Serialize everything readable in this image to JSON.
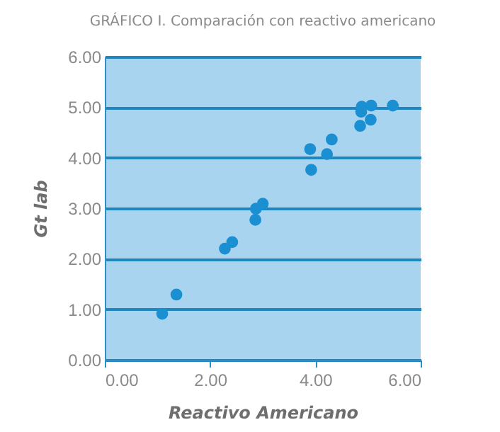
{
  "chart_data": {
    "type": "scatter",
    "title": "GRÁFICO I. Comparación con reactivo americano",
    "xlabel": "Reactivo Americano",
    "ylabel": "Gt lab",
    "series": [
      {
        "color": "#1a8fd1",
        "x": [
          1.09,
          1.36,
          2.28,
          2.42,
          2.86,
          2.87,
          3.0,
          3.9,
          3.92,
          4.22,
          4.31,
          4.85,
          4.87,
          4.88,
          5.06,
          5.05,
          5.47
        ],
        "values": [
          0.91,
          1.29,
          2.2,
          2.33,
          2.77,
          2.99,
          3.09,
          4.17,
          3.76,
          4.07,
          4.36,
          4.63,
          4.91,
          5.01,
          5.03,
          4.75,
          5.03
        ]
      }
    ],
    "xlim": [
      0,
      6
    ],
    "ylim": [
      0,
      6
    ],
    "xticks": [
      {
        "value": 0,
        "label": "0.00"
      },
      {
        "value": 2,
        "label": "2.00"
      },
      {
        "value": 4,
        "label": "4.00"
      },
      {
        "value": 6,
        "label": "6.00"
      }
    ],
    "yticks": [
      {
        "value": 0,
        "label": "0.00"
      },
      {
        "value": 1,
        "label": "1.00"
      },
      {
        "value": 2,
        "label": "2.00"
      },
      {
        "value": 3,
        "label": "3.00"
      },
      {
        "value": 4,
        "label": "4.00"
      },
      {
        "value": 5,
        "label": "5.00"
      },
      {
        "value": 6,
        "label": "6.00"
      }
    ],
    "grid": "y",
    "marker": "circle",
    "legend": false
  }
}
